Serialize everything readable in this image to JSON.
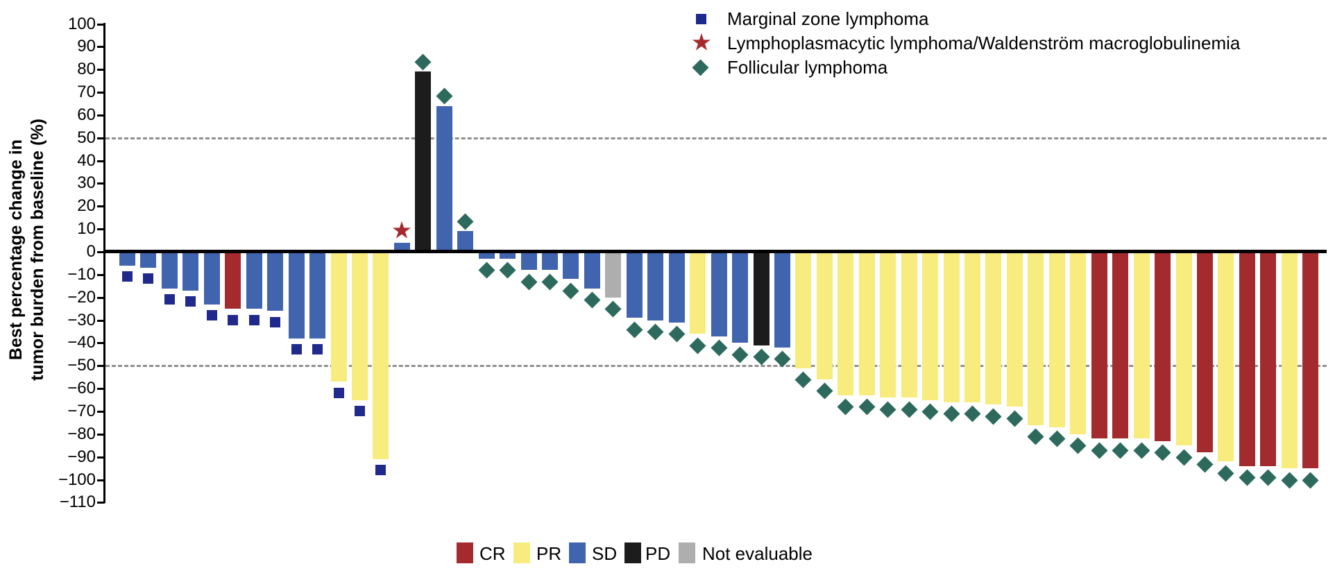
{
  "chart_data": {
    "type": "bar",
    "subtype": "waterfall",
    "ylabel_line1": "Best percentage change in",
    "ylabel_line2": "tumor burden from baseline (%)",
    "ylim": [
      -110,
      100
    ],
    "grid": "off",
    "reference_lines": [
      50,
      -50
    ],
    "yticks": [
      {
        "v": 100,
        "t": "100"
      },
      {
        "v": 90,
        "t": "90"
      },
      {
        "v": 80,
        "t": "80"
      },
      {
        "v": 70,
        "t": "70"
      },
      {
        "v": 60,
        "t": "60"
      },
      {
        "v": 50,
        "t": "50"
      },
      {
        "v": 40,
        "t": "40"
      },
      {
        "v": 30,
        "t": "30"
      },
      {
        "v": 20,
        "t": "20"
      },
      {
        "v": 10,
        "t": "10"
      },
      {
        "v": 0,
        "t": "0"
      },
      {
        "v": -10,
        "t": "−10"
      },
      {
        "v": -20,
        "t": "−20"
      },
      {
        "v": -30,
        "t": "−30"
      },
      {
        "v": -40,
        "t": "−40"
      },
      {
        "v": -50,
        "t": "−50"
      },
      {
        "v": -60,
        "t": "−60"
      },
      {
        "v": -70,
        "t": "−70"
      },
      {
        "v": -80,
        "t": "−80"
      },
      {
        "v": -90,
        "t": "−90"
      },
      {
        "v": -100,
        "t": "−100"
      },
      {
        "v": -110,
        "t": "−110"
      }
    ],
    "response_colors": {
      "CR": "#a32b2e",
      "PR": "#f7ec7d",
      "SD": "#4164ae",
      "PD": "#1c1c1c",
      "NE": "#aeaeae"
    },
    "histology_markers": {
      "MZL": {
        "shape": "square",
        "color": "#1f2a8c"
      },
      "LPL": {
        "shape": "star",
        "color": "#a6292d"
      },
      "FL": {
        "shape": "diamond",
        "color": "#2d6a5d"
      }
    },
    "legend_histology": [
      {
        "key": "MZL",
        "label": "Marginal zone lymphoma"
      },
      {
        "key": "LPL",
        "label": "Lymphoplasmacytic lymphoma/Waldenström macroglobulinemia"
      },
      {
        "key": "FL",
        "label": "Follicular lymphoma"
      }
    ],
    "legend_response": [
      {
        "key": "CR",
        "label": "CR"
      },
      {
        "key": "PR",
        "label": "PR"
      },
      {
        "key": "SD",
        "label": "SD"
      },
      {
        "key": "PD",
        "label": "PD"
      },
      {
        "key": "NE",
        "label": "Not evaluable"
      }
    ],
    "bars": [
      {
        "v": -6,
        "r": "SD",
        "h": "MZL"
      },
      {
        "v": -7,
        "r": "SD",
        "h": "MZL"
      },
      {
        "v": -16,
        "r": "SD",
        "h": "MZL"
      },
      {
        "v": -17,
        "r": "SD",
        "h": "MZL"
      },
      {
        "v": -23,
        "r": "SD",
        "h": "MZL"
      },
      {
        "v": -25,
        "r": "CR",
        "h": "MZL"
      },
      {
        "v": -25,
        "r": "SD",
        "h": "MZL"
      },
      {
        "v": -26,
        "r": "SD",
        "h": "MZL"
      },
      {
        "v": -38,
        "r": "SD",
        "h": "MZL"
      },
      {
        "v": -38,
        "r": "SD",
        "h": "MZL"
      },
      {
        "v": -57,
        "r": "PR",
        "h": "MZL"
      },
      {
        "v": -65,
        "r": "PR",
        "h": "MZL"
      },
      {
        "v": -91,
        "r": "PR",
        "h": "MZL"
      },
      {
        "v": 4,
        "r": "SD",
        "h": "LPL"
      },
      {
        "v": 79,
        "r": "PD",
        "h": "FL"
      },
      {
        "v": 64,
        "r": "SD",
        "h": "FL"
      },
      {
        "v": 9,
        "r": "SD",
        "h": "FL"
      },
      {
        "v": -3,
        "r": "SD",
        "h": "FL"
      },
      {
        "v": -3,
        "r": "SD",
        "h": "FL"
      },
      {
        "v": -8,
        "r": "SD",
        "h": "FL"
      },
      {
        "v": -8,
        "r": "SD",
        "h": "FL"
      },
      {
        "v": -12,
        "r": "SD",
        "h": "FL"
      },
      {
        "v": -16,
        "r": "SD",
        "h": "FL"
      },
      {
        "v": -20,
        "r": "NE",
        "h": "FL"
      },
      {
        "v": -29,
        "r": "SD",
        "h": "FL"
      },
      {
        "v": -30,
        "r": "SD",
        "h": "FL"
      },
      {
        "v": -31,
        "r": "SD",
        "h": "FL"
      },
      {
        "v": -36,
        "r": "PR",
        "h": "FL"
      },
      {
        "v": -37,
        "r": "SD",
        "h": "FL"
      },
      {
        "v": -40,
        "r": "SD",
        "h": "FL"
      },
      {
        "v": -41,
        "r": "PD",
        "h": "FL"
      },
      {
        "v": -42,
        "r": "SD",
        "h": "FL"
      },
      {
        "v": -51,
        "r": "PR",
        "h": "FL"
      },
      {
        "v": -56,
        "r": "PR",
        "h": "FL"
      },
      {
        "v": -63,
        "r": "PR",
        "h": "FL"
      },
      {
        "v": -63,
        "r": "PR",
        "h": "FL"
      },
      {
        "v": -64,
        "r": "PR",
        "h": "FL"
      },
      {
        "v": -64,
        "r": "PR",
        "h": "FL"
      },
      {
        "v": -65,
        "r": "PR",
        "h": "FL"
      },
      {
        "v": -66,
        "r": "PR",
        "h": "FL"
      },
      {
        "v": -66,
        "r": "PR",
        "h": "FL"
      },
      {
        "v": -67,
        "r": "PR",
        "h": "FL"
      },
      {
        "v": -68,
        "r": "PR",
        "h": "FL"
      },
      {
        "v": -76,
        "r": "PR",
        "h": "FL"
      },
      {
        "v": -77,
        "r": "PR",
        "h": "FL"
      },
      {
        "v": -80,
        "r": "PR",
        "h": "FL"
      },
      {
        "v": -82,
        "r": "CR",
        "h": "FL"
      },
      {
        "v": -82,
        "r": "CR",
        "h": "FL"
      },
      {
        "v": -82,
        "r": "PR",
        "h": "FL"
      },
      {
        "v": -83,
        "r": "CR",
        "h": "FL"
      },
      {
        "v": -85,
        "r": "PR",
        "h": "FL"
      },
      {
        "v": -88,
        "r": "CR",
        "h": "FL"
      },
      {
        "v": -92,
        "r": "PR",
        "h": "FL"
      },
      {
        "v": -94,
        "r": "CR",
        "h": "FL"
      },
      {
        "v": -94,
        "r": "CR",
        "h": "FL"
      },
      {
        "v": -95,
        "r": "PR",
        "h": "FL"
      },
      {
        "v": -95,
        "r": "CR",
        "h": "FL"
      }
    ]
  }
}
